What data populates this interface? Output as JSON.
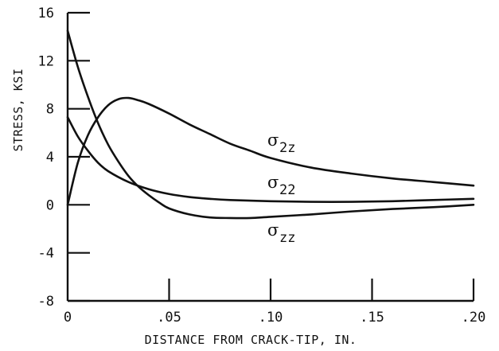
{
  "chart_data": {
    "type": "line",
    "xlabel": "DISTANCE FROM CRACK-TIP, IN.",
    "ylabel": "STRESS, KSI",
    "xlim": [
      0,
      0.2
    ],
    "ylim": [
      -8,
      16
    ],
    "x_ticks": [
      0,
      0.05,
      0.1,
      0.15,
      0.2
    ],
    "x_tick_labels": [
      "0",
      ".05",
      ".10",
      ".15",
      ".20"
    ],
    "y_ticks": [
      -8,
      -4,
      0,
      4,
      8,
      12,
      16
    ],
    "y_tick_labels": [
      "-8",
      "-4",
      "0",
      "4",
      "8",
      "12",
      "16"
    ],
    "grid": false,
    "series": [
      {
        "name": "σ2z",
        "label_symbol": "σ",
        "label_sub": "2z",
        "x": [
          0,
          0.005,
          0.01,
          0.015,
          0.02,
          0.025,
          0.03,
          0.035,
          0.04,
          0.05,
          0.06,
          0.07,
          0.08,
          0.09,
          0.1,
          0.12,
          0.14,
          0.16,
          0.18,
          0.2
        ],
        "y": [
          0,
          3.5,
          5.8,
          7.3,
          8.3,
          8.8,
          8.9,
          8.7,
          8.4,
          7.6,
          6.7,
          5.9,
          5.1,
          4.5,
          3.9,
          3.1,
          2.6,
          2.2,
          1.9,
          1.6
        ]
      },
      {
        "name": "σ22",
        "label_symbol": "σ",
        "label_sub": "22",
        "x": [
          0,
          0.005,
          0.01,
          0.015,
          0.02,
          0.03,
          0.04,
          0.05,
          0.06,
          0.07,
          0.08,
          0.1,
          0.12,
          0.14,
          0.16,
          0.18,
          0.2
        ],
        "y": [
          7.3,
          5.7,
          4.5,
          3.5,
          2.8,
          1.9,
          1.3,
          0.9,
          0.65,
          0.5,
          0.4,
          0.3,
          0.25,
          0.25,
          0.3,
          0.4,
          0.5
        ]
      },
      {
        "name": "σzz",
        "label_symbol": "σ",
        "label_sub": "zz",
        "x": [
          0,
          0.005,
          0.01,
          0.015,
          0.02,
          0.025,
          0.03,
          0.035,
          0.04,
          0.045,
          0.05,
          0.06,
          0.07,
          0.08,
          0.09,
          0.1,
          0.12,
          0.14,
          0.16,
          0.18,
          0.2
        ],
        "y": [
          14.5,
          11.5,
          9,
          6.8,
          5,
          3.6,
          2.4,
          1.5,
          0.8,
          0.2,
          -0.3,
          -0.8,
          -1.05,
          -1.1,
          -1.1,
          -1.0,
          -0.8,
          -0.55,
          -0.35,
          -0.2,
          0
        ]
      }
    ]
  }
}
